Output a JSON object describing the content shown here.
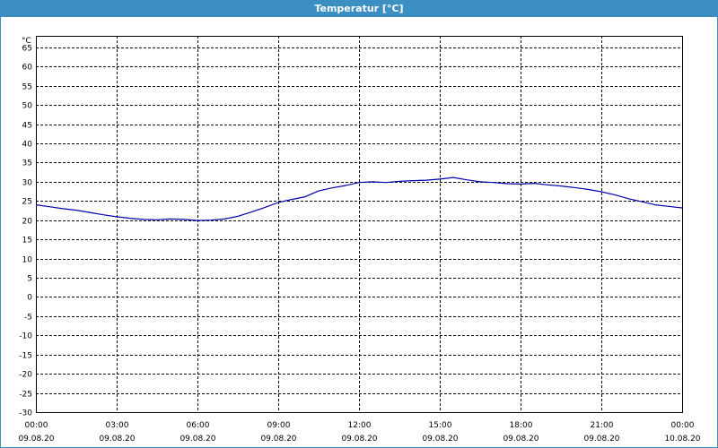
{
  "window": {
    "title": "Temperatur [°C]"
  },
  "colors": {
    "titlebar": "#3c8fc3",
    "series": "#0000aa",
    "grid": "#000000"
  },
  "chart_data": {
    "type": "line",
    "title": "Temperatur [°C]",
    "ylabel": "°C",
    "xlabel": "",
    "ylim": [
      -30,
      68
    ],
    "grid": true,
    "yticks": [
      65,
      60,
      55,
      50,
      45,
      40,
      35,
      30,
      25,
      20,
      15,
      10,
      5,
      0,
      -5,
      -10,
      -15,
      -20,
      -25,
      -30
    ],
    "xticks": [
      {
        "time": "00:00",
        "date": "09.08.20"
      },
      {
        "time": "03:00",
        "date": "09.08.20"
      },
      {
        "time": "06:00",
        "date": "09.08.20"
      },
      {
        "time": "09:00",
        "date": "09.08.20"
      },
      {
        "time": "12:00",
        "date": "09.08.20"
      },
      {
        "time": "15:00",
        "date": "09.08.20"
      },
      {
        "time": "18:00",
        "date": "09.08.20"
      },
      {
        "time": "21:00",
        "date": "09.08.20"
      },
      {
        "time": "00:00",
        "date": "10.08.20"
      }
    ],
    "series": [
      {
        "color": "#0000aa",
        "x": [
          "09.08.20 00:00",
          "09.08.20 00:30",
          "09.08.20 01:00",
          "09.08.20 01:30",
          "09.08.20 02:00",
          "09.08.20 02:30",
          "09.08.20 03:00",
          "09.08.20 03:30",
          "09.08.20 04:00",
          "09.08.20 04:30",
          "09.08.20 05:00",
          "09.08.20 05:30",
          "09.08.20 06:00",
          "09.08.20 06:30",
          "09.08.20 07:00",
          "09.08.20 07:30",
          "09.08.20 08:00",
          "09.08.20 08:30",
          "09.08.20 09:00",
          "09.08.20 09:30",
          "09.08.20 10:00",
          "09.08.20 10:30",
          "09.08.20 11:00",
          "09.08.20 11:30",
          "09.08.20 12:00",
          "09.08.20 12:30",
          "09.08.20 13:00",
          "09.08.20 13:30",
          "09.08.20 14:00",
          "09.08.20 14:30",
          "09.08.20 15:00",
          "09.08.20 15:30",
          "09.08.20 16:00",
          "09.08.20 16:30",
          "09.08.20 17:00",
          "09.08.20 17:30",
          "09.08.20 18:00",
          "09.08.20 18:30",
          "09.08.20 19:00",
          "09.08.20 19:30",
          "09.08.20 20:00",
          "09.08.20 20:30",
          "09.08.20 21:00",
          "09.08.20 21:30",
          "09.08.20 22:00",
          "09.08.20 22:30",
          "09.08.20 23:00",
          "09.08.20 23:30",
          "10.08.20 00:00"
        ],
        "values": [
          24.0,
          23.5,
          23.0,
          22.6,
          22.0,
          21.4,
          20.9,
          20.5,
          20.2,
          20.1,
          20.3,
          20.2,
          19.9,
          20.0,
          20.3,
          21.0,
          22.1,
          23.3,
          24.6,
          25.4,
          26.1,
          27.6,
          28.4,
          29.0,
          29.8,
          30.0,
          29.8,
          30.1,
          30.3,
          30.4,
          30.7,
          31.1,
          30.5,
          30.0,
          29.8,
          29.5,
          29.4,
          29.6,
          29.2,
          28.9,
          28.5,
          28.0,
          27.4,
          26.6,
          25.6,
          24.8,
          24.0,
          23.6,
          23.2
        ]
      }
    ]
  }
}
